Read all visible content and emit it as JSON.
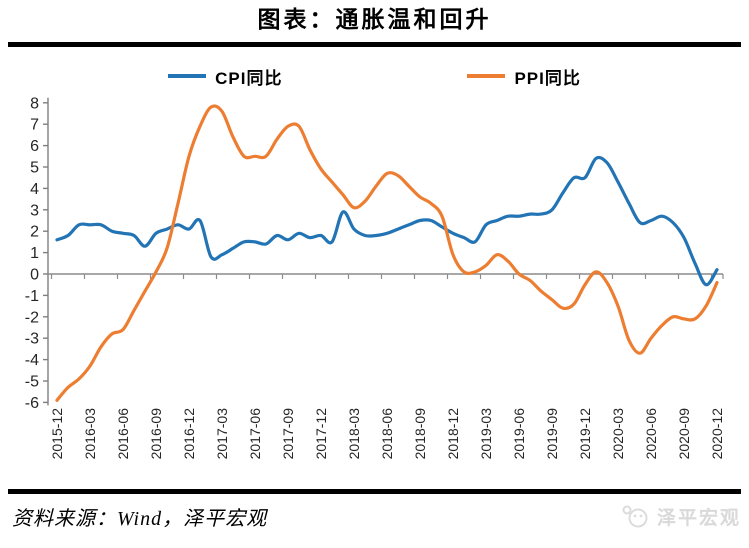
{
  "title": "图表：通胀温和回升",
  "legend": [
    {
      "label": "CPI同比",
      "color": "#2374B5"
    },
    {
      "label": "PPI同比",
      "color": "#ED7D31"
    }
  ],
  "source_text": "资料来源：Wind，泽平宏观",
  "watermark_text": "泽平宏观",
  "chart_data": {
    "type": "line",
    "title": "图表：通胀温和回升",
    "frequency": "monthly",
    "x_start": "2015-12",
    "x_end": "2020-12",
    "tick_labels": [
      "2015-12",
      "2016-03",
      "2016-06",
      "2016-09",
      "2016-12",
      "2017-03",
      "2017-06",
      "2017-09",
      "2017-12",
      "2018-03",
      "2018-06",
      "2018-09",
      "2018-12",
      "2019-03",
      "2019-06",
      "2019-09",
      "2019-12",
      "2020-03",
      "2020-06",
      "2020-09",
      "2020-12"
    ],
    "y_ticks": [
      8,
      7,
      6,
      5,
      4,
      3,
      2,
      1,
      0,
      -1,
      -2,
      -3,
      -4,
      -5,
      -6
    ],
    "ylim": [
      -6,
      8
    ],
    "zero_line": true,
    "legend_position": "top",
    "colors": {
      "cpi": "#2374B5",
      "ppi": "#ED7D31",
      "axis": "#7f7f7f",
      "zero_line": "#8c8c8c",
      "tick_text": "#262626"
    },
    "series": [
      {
        "name": "CPI同比",
        "color": "#2374B5",
        "values": [
          1.6,
          1.8,
          2.3,
          2.3,
          2.3,
          2.0,
          1.9,
          1.8,
          1.3,
          1.9,
          2.1,
          2.3,
          2.1,
          2.5,
          0.8,
          0.9,
          1.2,
          1.5,
          1.5,
          1.4,
          1.8,
          1.6,
          1.9,
          1.7,
          1.8,
          1.5,
          2.9,
          2.1,
          1.8,
          1.8,
          1.9,
          2.1,
          2.3,
          2.5,
          2.5,
          2.2,
          1.9,
          1.7,
          1.5,
          2.3,
          2.5,
          2.7,
          2.7,
          2.8,
          2.8,
          3.0,
          3.8,
          4.5,
          4.5,
          5.4,
          5.2,
          4.3,
          3.3,
          2.4,
          2.5,
          2.7,
          2.4,
          1.7,
          0.5,
          -0.5,
          0.2
        ]
      },
      {
        "name": "PPI同比",
        "color": "#ED7D31",
        "values": [
          -5.9,
          -5.3,
          -4.9,
          -4.3,
          -3.4,
          -2.8,
          -2.6,
          -1.7,
          -0.8,
          0.1,
          1.2,
          3.3,
          5.5,
          6.9,
          7.8,
          7.6,
          6.4,
          5.5,
          5.5,
          5.5,
          6.3,
          6.9,
          6.9,
          5.8,
          4.9,
          4.3,
          3.7,
          3.1,
          3.4,
          4.1,
          4.7,
          4.6,
          4.1,
          3.6,
          3.3,
          2.7,
          0.9,
          0.1,
          0.1,
          0.4,
          0.9,
          0.6,
          0.0,
          -0.3,
          -0.8,
          -1.2,
          -1.6,
          -1.4,
          -0.5,
          0.1,
          -0.4,
          -1.5,
          -3.1,
          -3.7,
          -3.0,
          -2.4,
          -2.0,
          -2.1,
          -2.1,
          -1.5,
          -0.4
        ]
      }
    ]
  }
}
